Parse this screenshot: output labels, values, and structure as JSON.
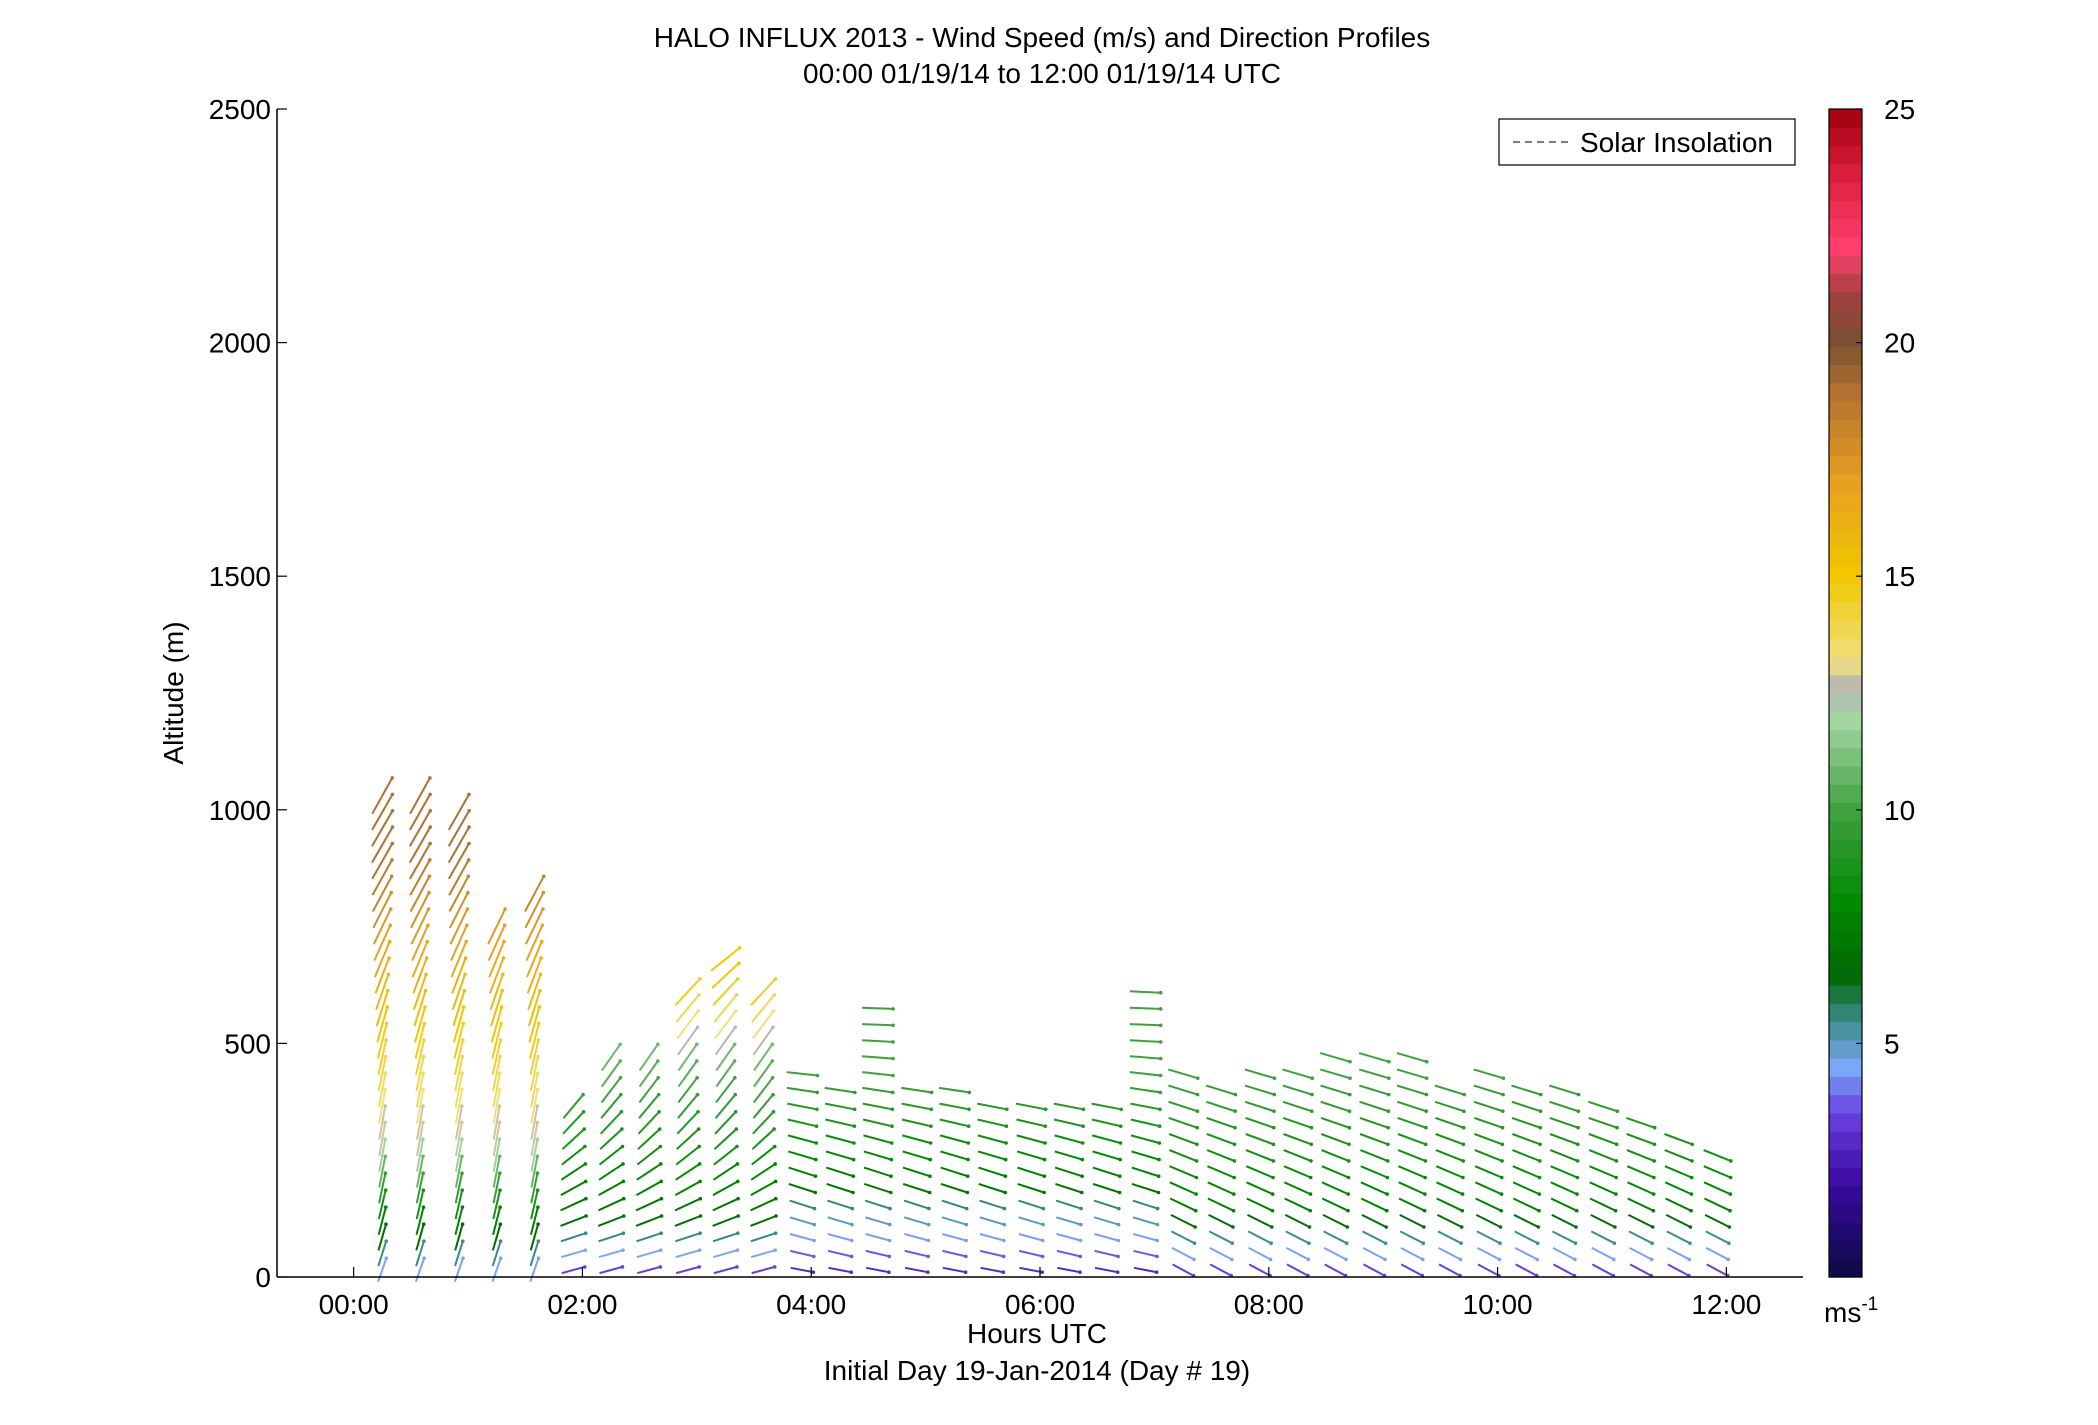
{
  "chart_data": {
    "type": "wind-barb-profile",
    "title": "HALO INFLUX 2013 - Wind Speed (m/s) and Direction Profiles",
    "subtitle": "00:00 01/19/14 to 12:00 01/19/14  UTC",
    "xlabel": "Hours UTC",
    "xlabel2": "Initial Day 19-Jan-2014 (Day # 19)",
    "ylabel": "Altitude (m)",
    "xlim": [
      -0.67,
      12.67
    ],
    "ylim": [
      0,
      2500
    ],
    "xticks": [
      {
        "value": 0,
        "label": "00:00"
      },
      {
        "value": 2,
        "label": "02:00"
      },
      {
        "value": 4,
        "label": "04:00"
      },
      {
        "value": 6,
        "label": "06:00"
      },
      {
        "value": 8,
        "label": "08:00"
      },
      {
        "value": 10,
        "label": "10:00"
      },
      {
        "value": 12,
        "label": "12:00"
      }
    ],
    "yticks": [
      {
        "value": 0,
        "label": "0"
      },
      {
        "value": 500,
        "label": "500"
      },
      {
        "value": 1000,
        "label": "1000"
      },
      {
        "value": 1500,
        "label": "1500"
      },
      {
        "value": 2000,
        "label": "2000"
      },
      {
        "value": 2500,
        "label": "2500"
      }
    ],
    "legend": {
      "label": "Solar Insolation",
      "placement": "top-right",
      "style": "dashed",
      "color": "#808080"
    },
    "colorbar": {
      "range": [
        0,
        25
      ],
      "unit": "ms",
      "unit_exp": "-1",
      "ticks": [
        {
          "value": 5,
          "label": "5"
        },
        {
          "value": 10,
          "label": "10"
        },
        {
          "value": 15,
          "label": "15"
        },
        {
          "value": 20,
          "label": "20"
        },
        {
          "value": 25,
          "label": "25"
        }
      ],
      "stops": [
        {
          "v": 0,
          "c": "#0a0a40"
        },
        {
          "v": 2,
          "c": "#3a0aa0"
        },
        {
          "v": 3.5,
          "c": "#6a40e0"
        },
        {
          "v": 4.5,
          "c": "#7aa8f8"
        },
        {
          "v": 5.5,
          "c": "#3a8a8a"
        },
        {
          "v": 6.5,
          "c": "#006a00"
        },
        {
          "v": 8,
          "c": "#008a00"
        },
        {
          "v": 10,
          "c": "#40a040"
        },
        {
          "v": 12,
          "c": "#a8d8a8"
        },
        {
          "v": 12.6,
          "c": "#b4b4b4"
        },
        {
          "v": 13.2,
          "c": "#f0e080"
        },
        {
          "v": 15,
          "c": "#f0c800"
        },
        {
          "v": 17,
          "c": "#e8a020"
        },
        {
          "v": 19,
          "c": "#b07030"
        },
        {
          "v": 20,
          "c": "#7a5030"
        },
        {
          "v": 21,
          "c": "#a04040"
        },
        {
          "v": 22,
          "c": "#ff4070"
        },
        {
          "v": 23.5,
          "c": "#e02040"
        },
        {
          "v": 25,
          "c": "#a00010"
        }
      ]
    },
    "profiles": [
      {
        "t": 0.25,
        "top": 1030
      },
      {
        "t": 0.58,
        "top": 1040
      },
      {
        "t": 0.92,
        "top": 1000
      },
      {
        "t": 1.25,
        "top": 770
      },
      {
        "t": 1.58,
        "top": 820
      },
      {
        "t": 1.92,
        "top": 390
      },
      {
        "t": 2.25,
        "top": 500
      },
      {
        "t": 2.58,
        "top": 500
      },
      {
        "t": 2.92,
        "top": 610
      },
      {
        "t": 3.25,
        "top": 690
      },
      {
        "t": 3.58,
        "top": 625
      },
      {
        "t": 3.92,
        "top": 450
      },
      {
        "t": 4.25,
        "top": 430
      },
      {
        "t": 4.58,
        "top": 600
      },
      {
        "t": 4.92,
        "top": 410
      },
      {
        "t": 5.25,
        "top": 400
      },
      {
        "t": 5.58,
        "top": 390
      },
      {
        "t": 5.92,
        "top": 380
      },
      {
        "t": 6.25,
        "top": 390
      },
      {
        "t": 6.58,
        "top": 370
      },
      {
        "t": 6.92,
        "top": 610
      },
      {
        "t": 7.25,
        "top": 440
      },
      {
        "t": 7.58,
        "top": 400
      },
      {
        "t": 7.92,
        "top": 450
      },
      {
        "t": 8.25,
        "top": 460
      },
      {
        "t": 8.58,
        "top": 480
      },
      {
        "t": 8.92,
        "top": 490
      },
      {
        "t": 9.25,
        "top": 470
      },
      {
        "t": 9.58,
        "top": 430
      },
      {
        "t": 9.92,
        "top": 440
      },
      {
        "t": 10.25,
        "top": 430
      },
      {
        "t": 10.58,
        "top": 400
      },
      {
        "t": 10.92,
        "top": 380
      },
      {
        "t": 11.25,
        "top": 340
      },
      {
        "t": 11.58,
        "top": 310
      },
      {
        "t": 11.92,
        "top": 270
      }
    ],
    "note_spacing_m": 35
  }
}
